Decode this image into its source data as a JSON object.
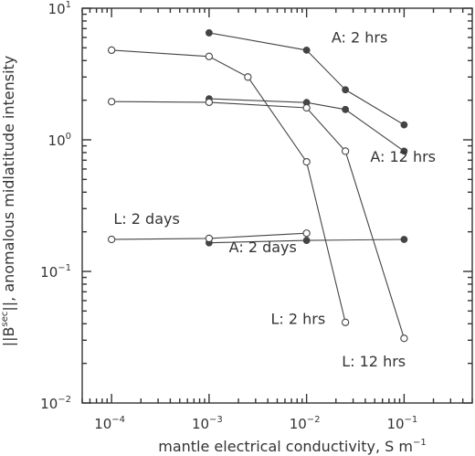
{
  "chart_data": {
    "type": "scatter",
    "xscale": "log",
    "yscale": "log",
    "xlim": [
      5e-05,
      0.5
    ],
    "ylim": [
      0.01,
      10
    ],
    "grid": false,
    "xlabel": "mantle electrical conductivity, S m",
    "xlabel_exp": "−1",
    "ylabel_pre": "||B",
    "ylabel_sup": "sec",
    "ylabel_post": "||, anomalous midlatitude intensity",
    "x_ticks": [
      {
        "value": 0.0001,
        "base": "10",
        "exp": "−4"
      },
      {
        "value": 0.001,
        "base": "10",
        "exp": "−3"
      },
      {
        "value": 0.01,
        "base": "10",
        "exp": "−2"
      },
      {
        "value": 0.1,
        "base": "10",
        "exp": "−1"
      }
    ],
    "y_ticks": [
      {
        "value": 0.01,
        "base": "10",
        "exp": "−2"
      },
      {
        "value": 0.1,
        "base": "10",
        "exp": "−1"
      },
      {
        "value": 1,
        "base": "10",
        "exp": "0"
      },
      {
        "value": 10,
        "base": "10",
        "exp": "1"
      }
    ],
    "series": [
      {
        "name": "A: 2 hrs",
        "marker": "filled",
        "color": "#444444",
        "x": [
          0.001,
          0.01,
          0.025,
          0.1
        ],
        "y": [
          6.5,
          4.8,
          2.4,
          1.3
        ]
      },
      {
        "name": "A: 12 hrs",
        "marker": "filled",
        "color": "#444444",
        "x": [
          0.001,
          0.01,
          0.025,
          0.1
        ],
        "y": [
          2.05,
          1.92,
          1.7,
          0.82
        ]
      },
      {
        "name": "A: 2 days",
        "marker": "filled",
        "color": "#444444",
        "x": [
          0.001,
          0.01,
          0.1
        ],
        "y": [
          0.165,
          0.172,
          0.175
        ]
      },
      {
        "name": "L: 2 hrs",
        "marker": "open",
        "color": "#444444",
        "x": [
          0.0001,
          0.001,
          0.0025,
          0.01,
          0.025
        ],
        "y": [
          4.8,
          4.3,
          3.0,
          0.68,
          0.041
        ]
      },
      {
        "name": "L: 12 hrs",
        "marker": "open",
        "color": "#444444",
        "x": [
          0.0001,
          0.001,
          0.01,
          0.025,
          0.1
        ],
        "y": [
          1.95,
          1.93,
          1.75,
          0.82,
          0.031
        ]
      },
      {
        "name": "L: 2 days",
        "marker": "open",
        "color": "#444444",
        "x": [
          0.0001,
          0.001,
          0.01
        ],
        "y": [
          0.175,
          0.178,
          0.195
        ]
      }
    ],
    "annotations": [
      {
        "text": "A: 2 hrs",
        "x": 0.018,
        "y": 5.5
      },
      {
        "text": "A: 12 hrs",
        "x": 0.045,
        "y": 0.68
      },
      {
        "text": "A: 2 days",
        "x": 0.0016,
        "y": 0.14
      },
      {
        "text": "L: 2 hrs",
        "x": 0.0043,
        "y": 0.04
      },
      {
        "text": "L: 12 hrs",
        "x": 0.023,
        "y": 0.019
      },
      {
        "text": "L: 2 days",
        "x": 0.000105,
        "y": 0.23
      }
    ]
  }
}
